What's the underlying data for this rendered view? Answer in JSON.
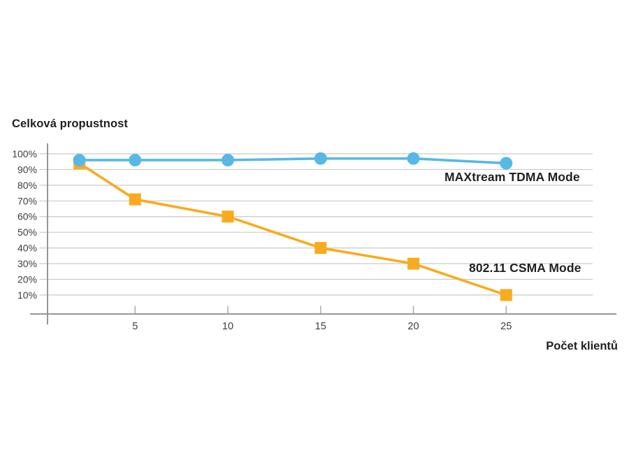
{
  "page": {
    "background": "#ffffff"
  },
  "chart": {
    "title": "Celková propustnost",
    "x_axis_label": "Počet klientů"
  },
  "chart_data": {
    "type": "line",
    "title": "Celková propustnost",
    "xlabel": "Počet klientů",
    "ylabel": "Celková propustnost",
    "x": [
      2,
      5,
      10,
      15,
      20,
      25
    ],
    "series": [
      {
        "name": "MAXtream TDMA Mode",
        "values": [
          96,
          96,
          96,
          97,
          97,
          94
        ],
        "color": "#57B8E6",
        "marker": "circle"
      },
      {
        "name": "802.11 CSMA Mode",
        "values": [
          94,
          71,
          60,
          40,
          30,
          10
        ],
        "color": "#F8AB1E",
        "marker": "square"
      }
    ],
    "x_ticks": [
      5,
      10,
      15,
      20,
      25
    ],
    "y_tick_values": [
      100,
      90,
      80,
      70,
      60,
      50,
      40,
      30,
      20,
      10
    ],
    "y_tick_labels": [
      "100%",
      "90%",
      "80%",
      "70%",
      "60%",
      "50%",
      "40%",
      "30%",
      "20%",
      "10%"
    ],
    "xlim": [
      0,
      30
    ],
    "ylim": [
      0,
      102
    ],
    "grid": true,
    "legend_position": "inline-annotations-right",
    "colors": {
      "grid": "#CACACA",
      "axis": "#969696",
      "x_tick": "#A5A5A5",
      "tick_text": "#3E3E3E",
      "label_text": "#231F20"
    }
  }
}
